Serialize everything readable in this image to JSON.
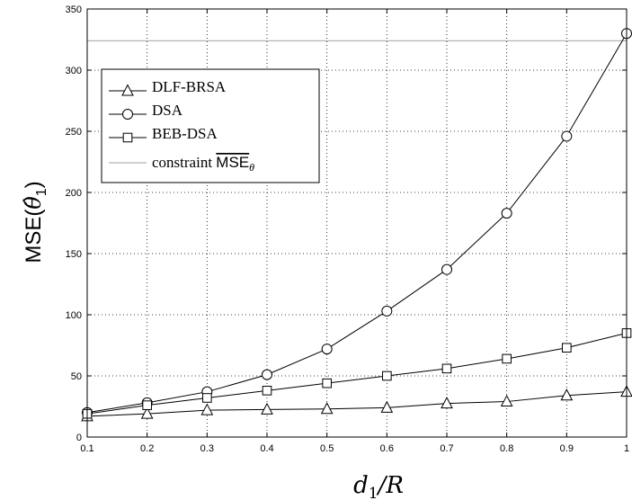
{
  "chart_data": {
    "type": "line",
    "xlabel": "d₁/R",
    "ylabel": "MSE(θ̂₁)",
    "x": [
      0.1,
      0.2,
      0.3,
      0.4,
      0.5,
      0.6,
      0.7,
      0.8,
      0.9,
      1.0
    ],
    "xlim": [
      0.1,
      1.0
    ],
    "ylim": [
      0,
      350
    ],
    "xticks": [
      "0.1",
      "0.2",
      "0.3",
      "0.4",
      "0.5",
      "0.6",
      "0.7",
      "0.8",
      "0.9",
      "1"
    ],
    "yticks": [
      "0",
      "50",
      "100",
      "150",
      "200",
      "250",
      "300",
      "350"
    ],
    "grid": true,
    "legend_position": "upper-left",
    "series": [
      {
        "name": "DLF-BRSA",
        "marker": "triangle",
        "color": "#000000",
        "values": [
          17,
          19,
          22,
          22.5,
          23,
          24,
          27.5,
          29,
          34,
          37
        ]
      },
      {
        "name": "DSA",
        "marker": "circle",
        "color": "#000000",
        "values": [
          20,
          28,
          37,
          51,
          72,
          103,
          137,
          183,
          246,
          330
        ]
      },
      {
        "name": "BEB-DSA",
        "marker": "square",
        "color": "#000000",
        "values": [
          19,
          26,
          32,
          38,
          44,
          50,
          56,
          64,
          73,
          85
        ]
      }
    ],
    "constraint": {
      "name": "constraint MSEθ",
      "value": 324,
      "color": "#b3b3b3"
    }
  }
}
